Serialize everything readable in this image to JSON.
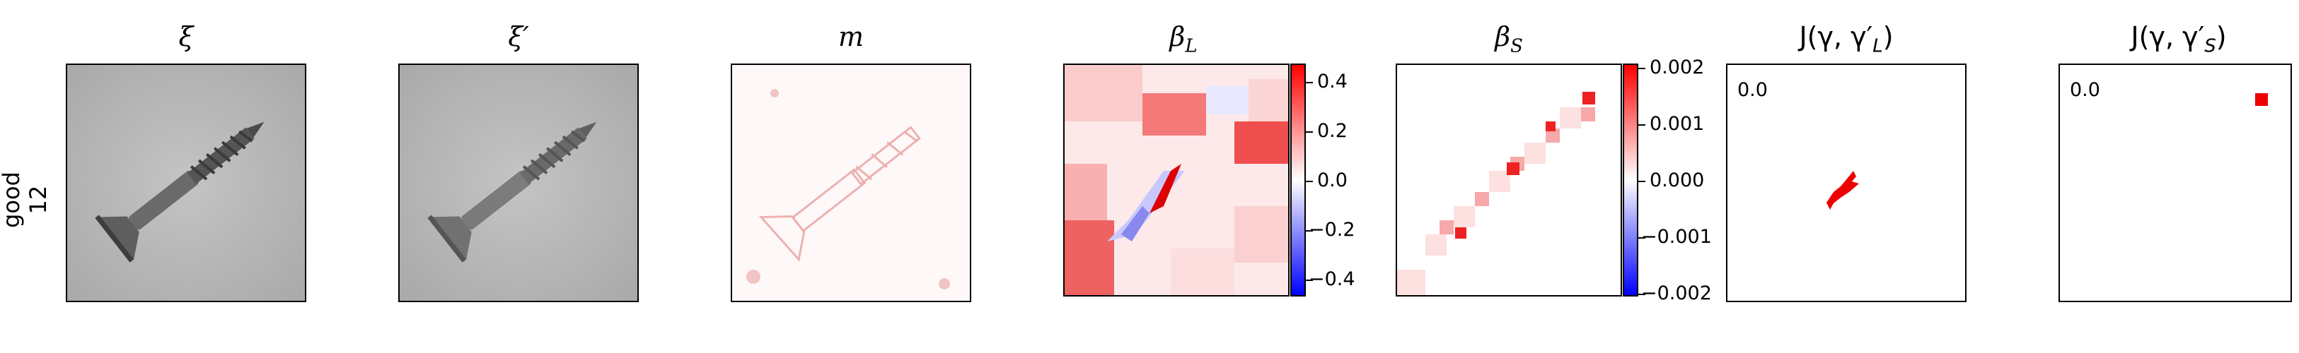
{
  "row": {
    "label_line1": "good",
    "label_line2": "12"
  },
  "panels": {
    "xi": {
      "title_main": "ξ"
    },
    "xi_prime": {
      "title_main": "ξ′"
    },
    "m": {
      "title_main": "m"
    },
    "beta_L": {
      "title_main": "β",
      "title_sub": "L"
    },
    "beta_S": {
      "title_main": "β",
      "title_sub": "S"
    },
    "J_L": {
      "title_text": "J(γ, γ′",
      "title_sub": "L",
      "title_close": ")",
      "corner_value": "0.0"
    },
    "J_S": {
      "title_text": "J(γ, γ′",
      "title_sub": "S",
      "title_close": ")",
      "corner_value": "0.0"
    }
  },
  "colorbars": {
    "beta_L": {
      "ticks": [
        "0.4",
        "0.2",
        "0.0",
        "−0.2",
        "−0.4"
      ],
      "colormap": "bwr"
    },
    "beta_S": {
      "ticks": [
        "0.002",
        "0.001",
        "0.000",
        "−0.001",
        "−0.002"
      ],
      "colormap": "bwr"
    }
  },
  "colors": {
    "red": "#ff0000",
    "blue": "#0000ff",
    "gray_bg": "#b9b9b9"
  },
  "icons": [
    "screw-image",
    "screw-image-reconstructed",
    "mask-heatmap",
    "beta-l-heatmap",
    "beta-s-heatmap",
    "jaccard-l-map",
    "jaccard-s-map"
  ]
}
